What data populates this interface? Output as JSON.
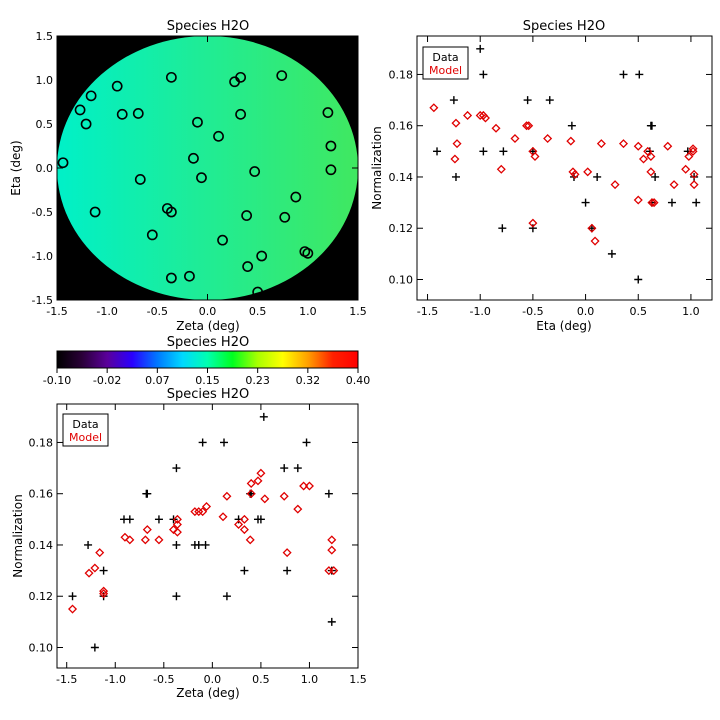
{
  "chart_data": [
    {
      "id": "map",
      "type": "heatmap",
      "title": "Species H2O",
      "xlabel": "Zeta (deg)",
      "ylabel": "Eta (deg)",
      "xlim": [
        -1.5,
        1.5
      ],
      "ylim": [
        -1.5,
        1.5
      ],
      "xticks": [
        -1.5,
        -1.0,
        -0.5,
        0.0,
        0.5,
        1.0,
        1.5
      ],
      "yticks": [
        -1.5,
        -1.0,
        -0.5,
        0.0,
        0.5,
        1.0,
        1.5
      ],
      "field_radius_deg": 1.5,
      "field_background": "#000000",
      "field_color_left": "#00f0c8",
      "field_color_right": "#40e860",
      "marker": "open circle",
      "points": [
        [
          -1.44,
          0.06
        ],
        [
          -1.27,
          0.66
        ],
        [
          -1.21,
          0.5
        ],
        [
          -1.16,
          0.82
        ],
        [
          -1.12,
          -0.5
        ],
        [
          -0.9,
          0.93
        ],
        [
          -0.85,
          0.61
        ],
        [
          -0.69,
          0.62
        ],
        [
          -0.67,
          -0.13
        ],
        [
          -0.55,
          -0.76
        ],
        [
          -0.36,
          1.03
        ],
        [
          -0.4,
          -0.46
        ],
        [
          -0.36,
          -0.5
        ],
        [
          -0.36,
          -1.25
        ],
        [
          -0.18,
          -1.23
        ],
        [
          -0.1,
          0.52
        ],
        [
          -0.14,
          0.11
        ],
        [
          -0.06,
          -0.11
        ],
        [
          0.11,
          0.36
        ],
        [
          0.15,
          -0.82
        ],
        [
          0.27,
          0.98
        ],
        [
          0.33,
          1.03
        ],
        [
          0.33,
          0.61
        ],
        [
          0.39,
          -0.54
        ],
        [
          0.4,
          -1.12
        ],
        [
          0.47,
          -0.04
        ],
        [
          0.5,
          -1.41
        ],
        [
          0.54,
          -1.0
        ],
        [
          0.74,
          1.05
        ],
        [
          0.77,
          -0.56
        ],
        [
          0.88,
          -0.33
        ],
        [
          0.97,
          -0.95
        ],
        [
          1.0,
          -0.97
        ],
        [
          1.2,
          0.63
        ],
        [
          1.23,
          0.25
        ],
        [
          1.23,
          -0.02
        ]
      ]
    },
    {
      "id": "colorbar",
      "type": "colorbar",
      "title": "Species H2O",
      "ticks": [
        "-0.10",
        "-0.02",
        "0.07",
        "0.15",
        "0.23",
        "0.32",
        "0.40"
      ],
      "range": [
        -0.1,
        0.4
      ],
      "colors": [
        "#000000",
        "#2a0038",
        "#5a009a",
        "#2a00ff",
        "#0078ff",
        "#00d8ff",
        "#00ffb0",
        "#00ff20",
        "#a8ff00",
        "#ffff00",
        "#ffa000",
        "#ff2000",
        "#ff0000"
      ]
    },
    {
      "id": "eta-plot",
      "type": "scatter",
      "title": "Species H2O",
      "xlabel": "Eta (deg)",
      "ylabel": "Normalization",
      "xlim": [
        -1.6,
        1.2
      ],
      "ylim": [
        0.092,
        0.195
      ],
      "xticks": [
        -1.5,
        -1.0,
        -0.5,
        0.0,
        0.5,
        1.0
      ],
      "yticks": [
        0.1,
        0.12,
        0.14,
        0.16,
        0.18
      ],
      "ytick_labels": [
        "0.10",
        "0.12",
        "0.14",
        "0.16",
        "0.18"
      ],
      "legend": {
        "position": "top-left",
        "entries": [
          "Data",
          "Model"
        ]
      },
      "series": [
        {
          "name": "Data",
          "marker": "plus",
          "color": "#000000",
          "points": [
            [
              -1.41,
              0.15
            ],
            [
              -1.25,
              0.17
            ],
            [
              -1.23,
              0.14
            ],
            [
              -1.0,
              0.19
            ],
            [
              -0.97,
              0.18
            ],
            [
              -0.97,
              0.15
            ],
            [
              -0.78,
              0.15
            ],
            [
              -0.79,
              0.12
            ],
            [
              -0.55,
              0.17
            ],
            [
              -0.5,
              0.15
            ],
            [
              -0.5,
              0.12
            ],
            [
              -0.34,
              0.17
            ],
            [
              -0.13,
              0.16
            ],
            [
              -0.11,
              0.14
            ],
            [
              0.0,
              0.13
            ],
            [
              0.06,
              0.12
            ],
            [
              0.11,
              0.14
            ],
            [
              0.25,
              0.11
            ],
            [
              0.36,
              0.18
            ],
            [
              0.51,
              0.18
            ],
            [
              0.5,
              0.1
            ],
            [
              0.62,
              0.16
            ],
            [
              0.63,
              0.16
            ],
            [
              0.61,
              0.15
            ],
            [
              0.63,
              0.13
            ],
            [
              0.66,
              0.14
            ],
            [
              0.82,
              0.13
            ],
            [
              0.97,
              0.15
            ],
            [
              1.03,
              0.14
            ],
            [
              1.05,
              0.13
            ]
          ]
        },
        {
          "name": "Model",
          "marker": "diamond",
          "color": "#e00000",
          "points": [
            [
              -1.44,
              0.167
            ],
            [
              -1.23,
              0.161
            ],
            [
              -1.22,
              0.153
            ],
            [
              -1.24,
              0.147
            ],
            [
              -1.12,
              0.164
            ],
            [
              -1.0,
              0.164
            ],
            [
              -0.97,
              0.164
            ],
            [
              -0.95,
              0.163
            ],
            [
              -0.85,
              0.159
            ],
            [
              -0.8,
              0.143
            ],
            [
              -0.67,
              0.155
            ],
            [
              -0.56,
              0.16
            ],
            [
              -0.54,
              0.16
            ],
            [
              -0.5,
              0.15
            ],
            [
              -0.48,
              0.148
            ],
            [
              -0.5,
              0.122
            ],
            [
              -0.36,
              0.155
            ],
            [
              -0.14,
              0.154
            ],
            [
              -0.12,
              0.142
            ],
            [
              -0.1,
              0.141
            ],
            [
              0.02,
              0.142
            ],
            [
              0.06,
              0.12
            ],
            [
              0.09,
              0.115
            ],
            [
              0.15,
              0.153
            ],
            [
              0.28,
              0.137
            ],
            [
              0.36,
              0.153
            ],
            [
              0.5,
              0.152
            ],
            [
              0.5,
              0.131
            ],
            [
              0.55,
              0.147
            ],
            [
              0.59,
              0.15
            ],
            [
              0.62,
              0.148
            ],
            [
              0.62,
              0.142
            ],
            [
              0.63,
              0.13
            ],
            [
              0.65,
              0.13
            ],
            [
              0.78,
              0.152
            ],
            [
              0.84,
              0.137
            ],
            [
              0.95,
              0.143
            ],
            [
              0.98,
              0.148
            ],
            [
              1.02,
              0.15
            ],
            [
              1.03,
              0.141
            ],
            [
              1.03,
              0.137
            ],
            [
              1.02,
              0.151
            ]
          ]
        }
      ]
    },
    {
      "id": "zeta-plot",
      "type": "scatter",
      "title": "Species H2O",
      "xlabel": "Zeta (deg)",
      "ylabel": "Normalization",
      "xlim": [
        -1.6,
        1.5
      ],
      "ylim": [
        0.092,
        0.195
      ],
      "xticks": [
        -1.5,
        -1.0,
        -0.5,
        0.0,
        0.5,
        1.0,
        1.5
      ],
      "yticks": [
        0.1,
        0.12,
        0.14,
        0.16,
        0.18
      ],
      "ytick_labels": [
        "0.10",
        "0.12",
        "0.14",
        "0.16",
        "0.18"
      ],
      "legend": {
        "position": "top-left",
        "entries": [
          "Data",
          "Model"
        ]
      },
      "series": [
        {
          "name": "Data",
          "marker": "plus",
          "color": "#000000",
          "points": [
            [
              -1.44,
              0.12
            ],
            [
              -1.28,
              0.14
            ],
            [
              -1.21,
              0.1
            ],
            [
              -1.12,
              0.13
            ],
            [
              -1.12,
              0.12
            ],
            [
              -0.91,
              0.15
            ],
            [
              -0.85,
              0.15
            ],
            [
              -0.68,
              0.16
            ],
            [
              -0.67,
              0.16
            ],
            [
              -0.55,
              0.15
            ],
            [
              -0.4,
              0.15
            ],
            [
              -0.37,
              0.17
            ],
            [
              -0.37,
              0.14
            ],
            [
              -0.37,
              0.12
            ],
            [
              -0.18,
              0.14
            ],
            [
              -0.14,
              0.14
            ],
            [
              -0.1,
              0.18
            ],
            [
              -0.07,
              0.14
            ],
            [
              0.12,
              0.18
            ],
            [
              0.15,
              0.12
            ],
            [
              0.27,
              0.15
            ],
            [
              0.33,
              0.13
            ],
            [
              0.39,
              0.16
            ],
            [
              0.4,
              0.16
            ],
            [
              0.47,
              0.15
            ],
            [
              0.5,
              0.15
            ],
            [
              0.53,
              0.19
            ],
            [
              0.74,
              0.17
            ],
            [
              0.77,
              0.13
            ],
            [
              0.88,
              0.17
            ],
            [
              0.97,
              0.18
            ],
            [
              1.2,
              0.16
            ],
            [
              1.23,
              0.13
            ],
            [
              1.23,
              0.11
            ]
          ]
        },
        {
          "name": "Model",
          "marker": "diamond",
          "color": "#e00000",
          "points": [
            [
              -1.44,
              0.115
            ],
            [
              -1.27,
              0.129
            ],
            [
              -1.21,
              0.131
            ],
            [
              -1.16,
              0.137
            ],
            [
              -1.12,
              0.121
            ],
            [
              -1.12,
              0.122
            ],
            [
              -0.9,
              0.143
            ],
            [
              -0.85,
              0.142
            ],
            [
              -0.69,
              0.142
            ],
            [
              -0.67,
              0.146
            ],
            [
              -0.55,
              0.142
            ],
            [
              -0.36,
              0.15
            ],
            [
              -0.4,
              0.146
            ],
            [
              -0.36,
              0.145
            ],
            [
              -0.36,
              0.148
            ],
            [
              -0.18,
              0.153
            ],
            [
              -0.14,
              0.153
            ],
            [
              -0.1,
              0.153
            ],
            [
              -0.06,
              0.155
            ],
            [
              0.11,
              0.151
            ],
            [
              0.15,
              0.159
            ],
            [
              0.27,
              0.148
            ],
            [
              0.33,
              0.146
            ],
            [
              0.33,
              0.15
            ],
            [
              0.39,
              0.142
            ],
            [
              0.4,
              0.164
            ],
            [
              0.4,
              0.16
            ],
            [
              0.47,
              0.165
            ],
            [
              0.5,
              0.168
            ],
            [
              0.54,
              0.158
            ],
            [
              0.74,
              0.159
            ],
            [
              0.77,
              0.137
            ],
            [
              0.88,
              0.154
            ],
            [
              0.94,
              0.163
            ],
            [
              1.0,
              0.163
            ],
            [
              1.2,
              0.13
            ],
            [
              1.23,
              0.142
            ],
            [
              1.23,
              0.138
            ],
            [
              1.25,
              0.13
            ]
          ]
        }
      ]
    }
  ]
}
